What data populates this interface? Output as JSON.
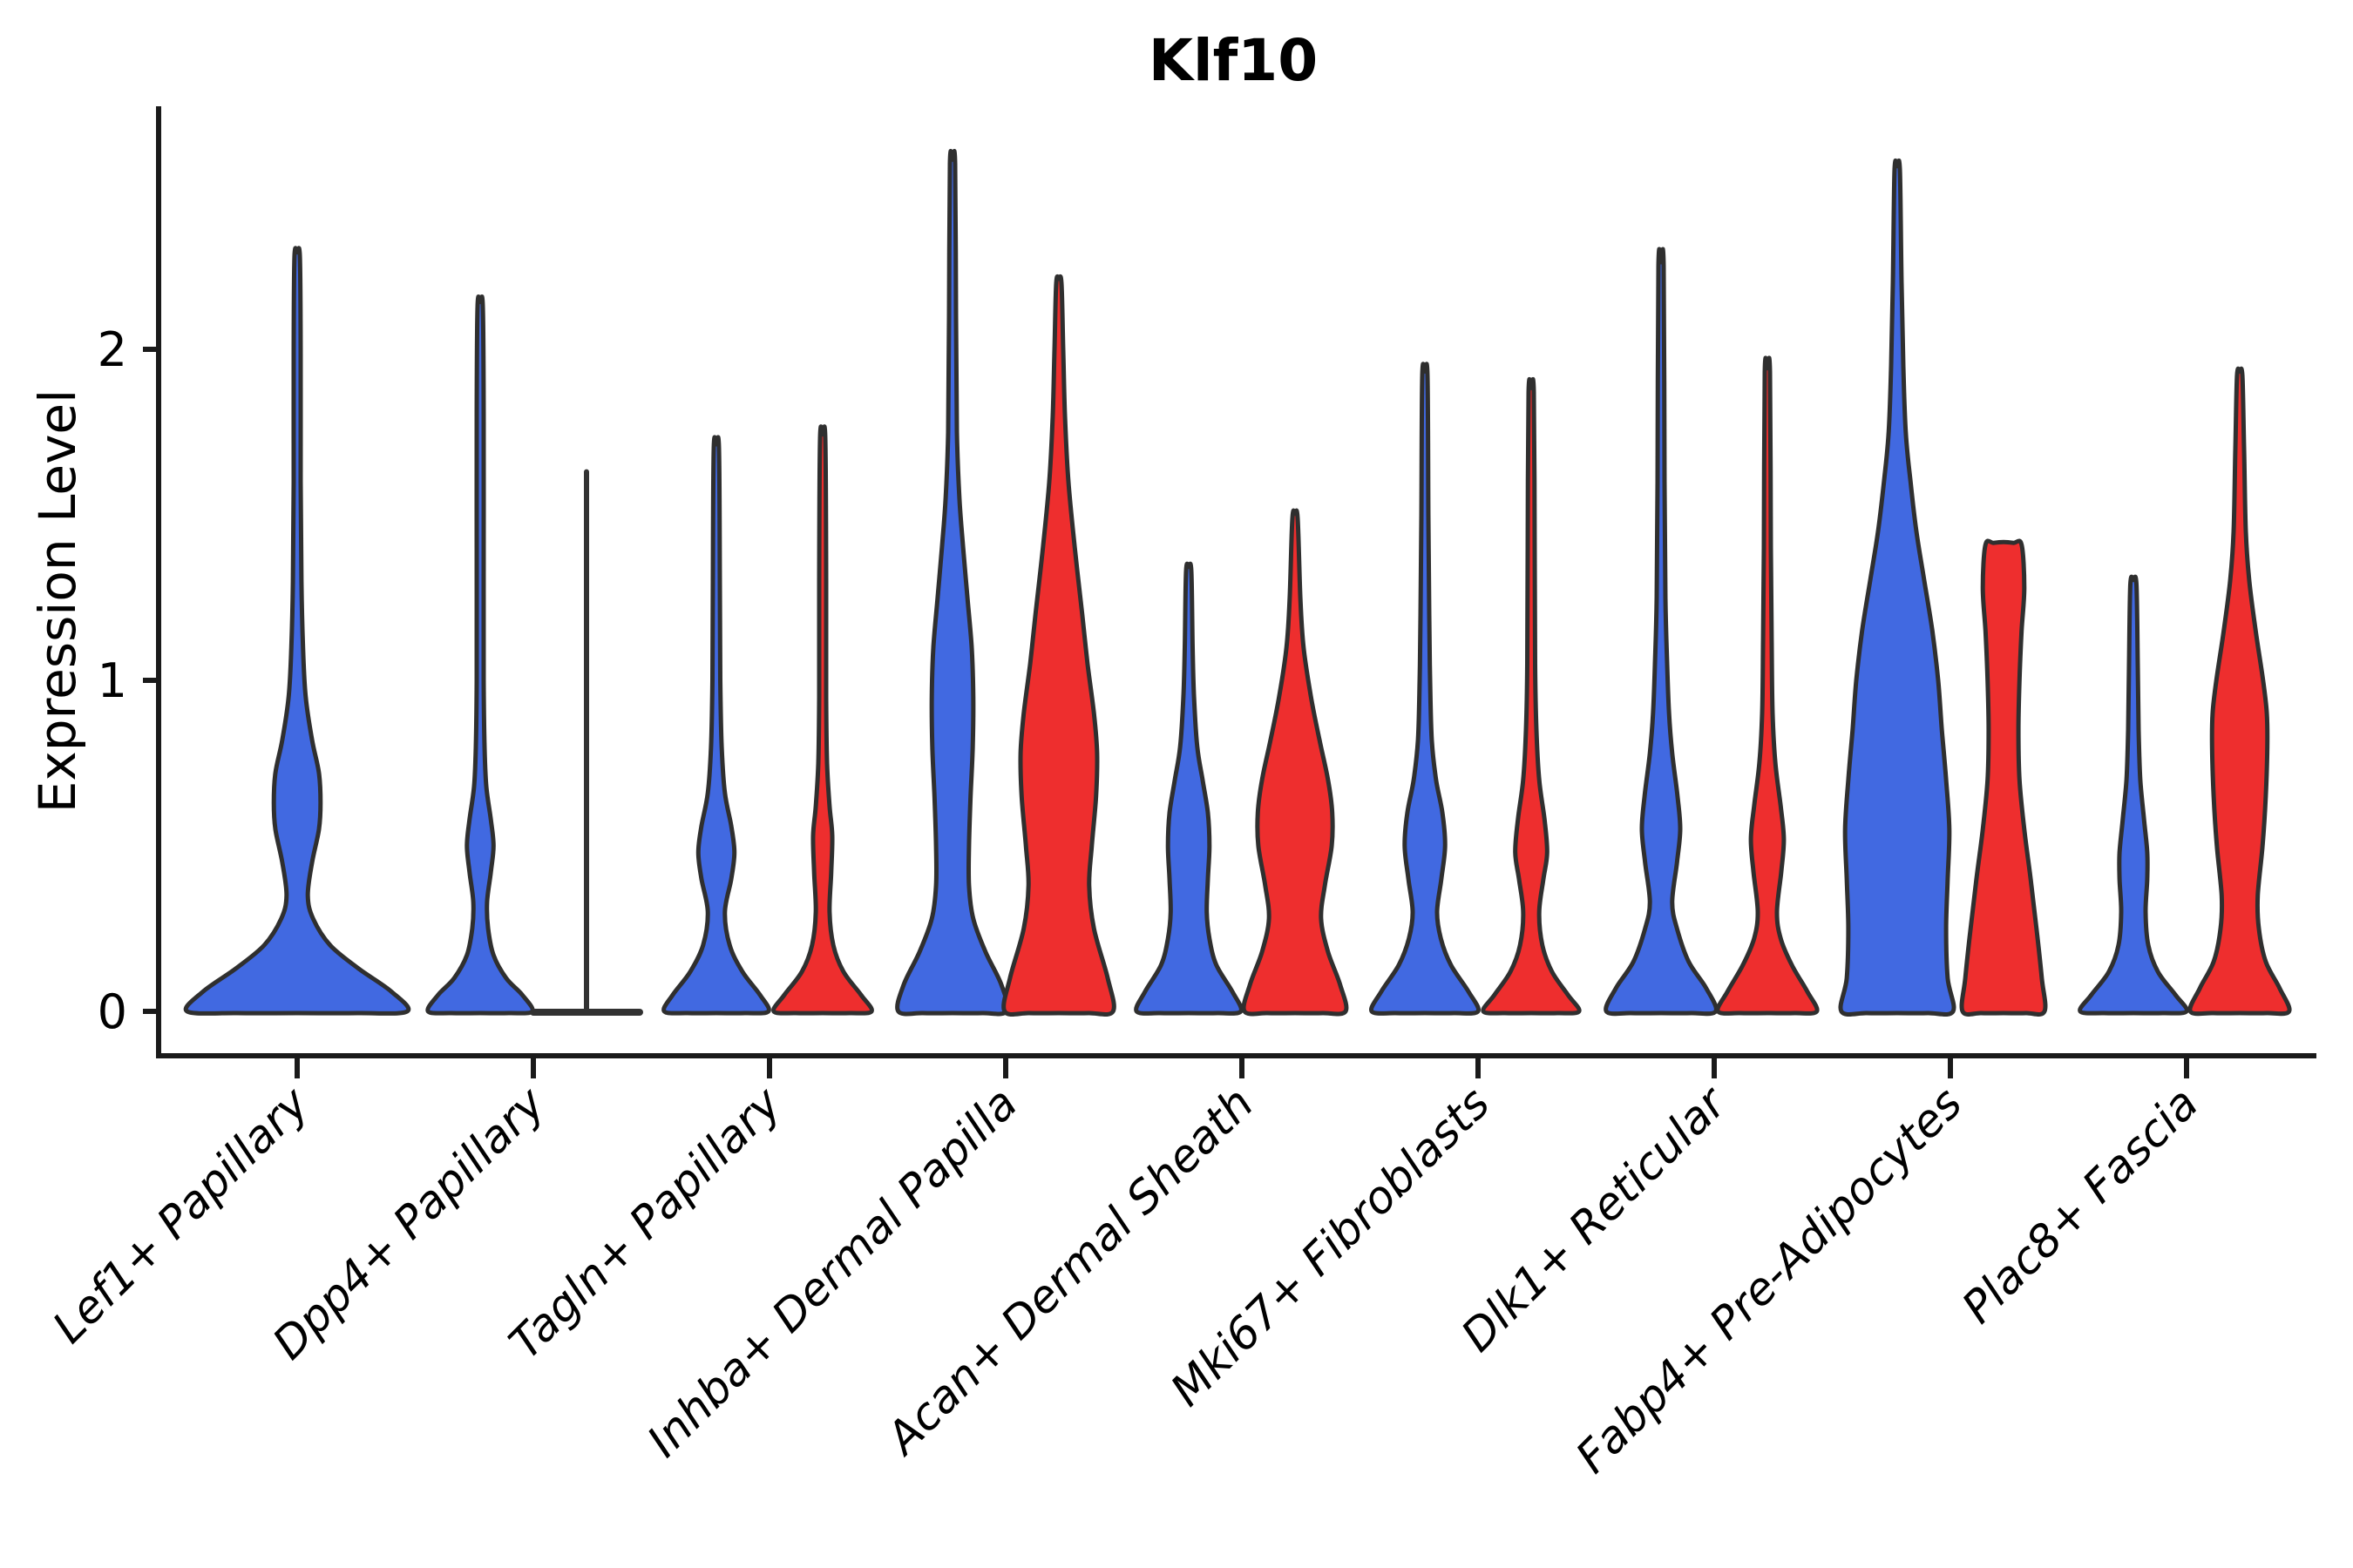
{
  "title": "Klf10",
  "axes": {
    "ylabel": "Expression Level",
    "ytick_labels": [
      "0",
      "1",
      "2"
    ]
  },
  "colors": {
    "blue": "#4169E1",
    "red": "#EE2E2E",
    "outline": "#2f2f2f",
    "axis": "#1a1a1a"
  },
  "chart_data": {
    "type": "violin",
    "title": "Klf10",
    "xlabel": "",
    "ylabel": "Expression Level",
    "ytick_values": [
      0,
      1,
      2
    ],
    "ylim": [
      -0.12,
      2.72
    ],
    "grid": false,
    "legend": "none",
    "categories": [
      "Lef1+ Papillary",
      "Dpp4+ Papillary",
      "Tagln+ Papillary",
      "Inhba+ Dermal Papilla",
      "Acan+ Dermal Sheath",
      "Mki67+ Fibroblasts",
      "Dlk1+ Reticular",
      "Fabp4+ Pre-Adipocytes",
      "Plac8+ Fascia"
    ],
    "series": [
      {
        "name": "blue",
        "color": "#4169E1"
      },
      {
        "name": "red",
        "color": "#EE2E2E"
      }
    ],
    "violins": [
      {
        "category": "Lef1+ Papillary",
        "series": "blue",
        "position": "center",
        "style": "violin",
        "max": 2.28,
        "profile": [
          [
            0,
            2.07
          ],
          [
            0.06,
            1.77
          ],
          [
            0.13,
            1.15
          ],
          [
            0.2,
            0.62
          ],
          [
            0.28,
            0.3
          ],
          [
            0.35,
            0.2
          ],
          [
            0.45,
            0.28
          ],
          [
            0.55,
            0.41
          ],
          [
            0.63,
            0.44
          ],
          [
            0.72,
            0.41
          ],
          [
            0.82,
            0.28
          ],
          [
            0.95,
            0.16
          ],
          [
            1.1,
            0.11
          ],
          [
            1.3,
            0.08
          ],
          [
            1.6,
            0.066
          ],
          [
            2.0,
            0.066
          ],
          [
            2.28,
            0.05
          ]
        ]
      },
      {
        "category": "Dpp4+ Papillary",
        "series": "blue",
        "position": "left",
        "style": "violin",
        "max": 2.13,
        "profile": [
          [
            0,
            0.98
          ],
          [
            0.05,
            0.79
          ],
          [
            0.1,
            0.49
          ],
          [
            0.17,
            0.25
          ],
          [
            0.25,
            0.15
          ],
          [
            0.33,
            0.13
          ],
          [
            0.42,
            0.2
          ],
          [
            0.5,
            0.25
          ],
          [
            0.58,
            0.2
          ],
          [
            0.68,
            0.115
          ],
          [
            0.8,
            0.082
          ],
          [
            1.0,
            0.066
          ],
          [
            1.4,
            0.066
          ],
          [
            1.8,
            0.066
          ],
          [
            2.13,
            0.05
          ]
        ]
      },
      {
        "category": "Dpp4+ Papillary",
        "series": "red",
        "position": "right",
        "style": "collapsed-line",
        "max": 1.63,
        "base_halfwidth": 1.0,
        "profile": []
      },
      {
        "category": "Tagln+ Papillary",
        "series": "blue",
        "position": "left",
        "style": "violin",
        "max": 1.7,
        "profile": [
          [
            0,
            0.98
          ],
          [
            0.05,
            0.82
          ],
          [
            0.12,
            0.49
          ],
          [
            0.2,
            0.25
          ],
          [
            0.3,
            0.16
          ],
          [
            0.4,
            0.28
          ],
          [
            0.48,
            0.34
          ],
          [
            0.56,
            0.28
          ],
          [
            0.66,
            0.16
          ],
          [
            0.8,
            0.1
          ],
          [
            1.0,
            0.074
          ],
          [
            1.3,
            0.066
          ],
          [
            1.7,
            0.05
          ]
        ]
      },
      {
        "category": "Tagln+ Papillary",
        "series": "red",
        "position": "right",
        "style": "violin",
        "max": 1.73,
        "profile": [
          [
            0,
            0.92
          ],
          [
            0.05,
            0.72
          ],
          [
            0.12,
            0.39
          ],
          [
            0.2,
            0.2
          ],
          [
            0.3,
            0.13
          ],
          [
            0.42,
            0.16
          ],
          [
            0.53,
            0.18
          ],
          [
            0.62,
            0.13
          ],
          [
            0.75,
            0.082
          ],
          [
            0.95,
            0.066
          ],
          [
            1.3,
            0.066
          ],
          [
            1.73,
            0.05
          ]
        ]
      },
      {
        "category": "Inhba+ Dermal Papilla",
        "series": "blue",
        "position": "left",
        "style": "violin",
        "max": 2.56,
        "profile": [
          [
            0,
            1.02
          ],
          [
            0.08,
            0.92
          ],
          [
            0.18,
            0.62
          ],
          [
            0.28,
            0.39
          ],
          [
            0.38,
            0.31
          ],
          [
            0.5,
            0.31
          ],
          [
            0.65,
            0.34
          ],
          [
            0.8,
            0.38
          ],
          [
            0.95,
            0.39
          ],
          [
            1.1,
            0.36
          ],
          [
            1.25,
            0.28
          ],
          [
            1.4,
            0.2
          ],
          [
            1.55,
            0.13
          ],
          [
            1.75,
            0.082
          ],
          [
            2.1,
            0.066
          ],
          [
            2.56,
            0.05
          ]
        ]
      },
      {
        "category": "Inhba+ Dermal Papilla",
        "series": "red",
        "position": "right",
        "style": "violin",
        "max": 2.2,
        "profile": [
          [
            0,
            1.02
          ],
          [
            0.1,
            0.92
          ],
          [
            0.25,
            0.66
          ],
          [
            0.38,
            0.57
          ],
          [
            0.5,
            0.62
          ],
          [
            0.65,
            0.7
          ],
          [
            0.78,
            0.72
          ],
          [
            0.9,
            0.66
          ],
          [
            1.05,
            0.54
          ],
          [
            1.2,
            0.44
          ],
          [
            1.4,
            0.3
          ],
          [
            1.6,
            0.18
          ],
          [
            1.8,
            0.115
          ],
          [
            2.0,
            0.082
          ],
          [
            2.2,
            0.05
          ]
        ]
      },
      {
        "category": "Acan+ Dermal Sheath",
        "series": "blue",
        "position": "left",
        "style": "violin",
        "max": 1.33,
        "profile": [
          [
            0,
            0.98
          ],
          [
            0.06,
            0.82
          ],
          [
            0.14,
            0.52
          ],
          [
            0.22,
            0.39
          ],
          [
            0.3,
            0.34
          ],
          [
            0.4,
            0.36
          ],
          [
            0.5,
            0.39
          ],
          [
            0.6,
            0.36
          ],
          [
            0.7,
            0.26
          ],
          [
            0.8,
            0.16
          ],
          [
            0.95,
            0.1
          ],
          [
            1.1,
            0.074
          ],
          [
            1.33,
            0.05
          ]
        ]
      },
      {
        "category": "Acan+ Dermal Sheath",
        "series": "red",
        "position": "right",
        "style": "violin",
        "max": 1.49,
        "profile": [
          [
            0,
            0.95
          ],
          [
            0.08,
            0.85
          ],
          [
            0.18,
            0.62
          ],
          [
            0.28,
            0.49
          ],
          [
            0.38,
            0.56
          ],
          [
            0.5,
            0.69
          ],
          [
            0.6,
            0.7
          ],
          [
            0.7,
            0.62
          ],
          [
            0.82,
            0.46
          ],
          [
            0.95,
            0.3
          ],
          [
            1.1,
            0.16
          ],
          [
            1.25,
            0.1
          ],
          [
            1.49,
            0.05
          ]
        ]
      },
      {
        "category": "Mki67+ Fibroblasts",
        "series": "blue",
        "position": "left",
        "style": "violin",
        "max": 1.92,
        "profile": [
          [
            0,
            1.0
          ],
          [
            0.06,
            0.82
          ],
          [
            0.14,
            0.49
          ],
          [
            0.22,
            0.3
          ],
          [
            0.3,
            0.23
          ],
          [
            0.4,
            0.31
          ],
          [
            0.5,
            0.38
          ],
          [
            0.6,
            0.33
          ],
          [
            0.7,
            0.21
          ],
          [
            0.82,
            0.13
          ],
          [
            1.0,
            0.098
          ],
          [
            1.2,
            0.082
          ],
          [
            1.5,
            0.066
          ],
          [
            1.92,
            0.05
          ]
        ]
      },
      {
        "category": "Mki67+ Fibroblasts",
        "series": "red",
        "position": "right",
        "style": "violin",
        "max": 1.87,
        "profile": [
          [
            0,
            0.9
          ],
          [
            0.05,
            0.69
          ],
          [
            0.12,
            0.39
          ],
          [
            0.2,
            0.21
          ],
          [
            0.3,
            0.15
          ],
          [
            0.4,
            0.23
          ],
          [
            0.48,
            0.3
          ],
          [
            0.58,
            0.25
          ],
          [
            0.7,
            0.15
          ],
          [
            0.85,
            0.098
          ],
          [
            1.05,
            0.074
          ],
          [
            1.4,
            0.066
          ],
          [
            1.87,
            0.05
          ]
        ]
      },
      {
        "category": "Dlk1+ Reticular",
        "series": "blue",
        "position": "left",
        "style": "violin",
        "max": 2.25,
        "profile": [
          [
            0,
            1.03
          ],
          [
            0.07,
            0.85
          ],
          [
            0.15,
            0.52
          ],
          [
            0.25,
            0.3
          ],
          [
            0.33,
            0.21
          ],
          [
            0.45,
            0.3
          ],
          [
            0.55,
            0.36
          ],
          [
            0.65,
            0.31
          ],
          [
            0.78,
            0.21
          ],
          [
            0.9,
            0.15
          ],
          [
            1.05,
            0.115
          ],
          [
            1.25,
            0.082
          ],
          [
            1.6,
            0.066
          ],
          [
            2.25,
            0.05
          ]
        ]
      },
      {
        "category": "Dlk1+ Reticular",
        "series": "red",
        "position": "right",
        "style": "violin",
        "max": 1.93,
        "profile": [
          [
            0,
            0.93
          ],
          [
            0.06,
            0.75
          ],
          [
            0.14,
            0.46
          ],
          [
            0.22,
            0.25
          ],
          [
            0.3,
            0.18
          ],
          [
            0.42,
            0.26
          ],
          [
            0.52,
            0.31
          ],
          [
            0.62,
            0.25
          ],
          [
            0.75,
            0.15
          ],
          [
            0.9,
            0.098
          ],
          [
            1.1,
            0.082
          ],
          [
            1.4,
            0.066
          ],
          [
            1.93,
            0.05
          ]
        ]
      },
      {
        "category": "Fabp4+ Pre-Adipocytes",
        "series": "blue",
        "position": "left",
        "style": "violin",
        "max": 2.54,
        "profile": [
          [
            0,
            1.05
          ],
          [
            0.1,
            0.95
          ],
          [
            0.25,
            0.92
          ],
          [
            0.4,
            0.95
          ],
          [
            0.55,
            0.98
          ],
          [
            0.7,
            0.92
          ],
          [
            0.85,
            0.84
          ],
          [
            1.0,
            0.77
          ],
          [
            1.15,
            0.66
          ],
          [
            1.3,
            0.51
          ],
          [
            1.45,
            0.36
          ],
          [
            1.6,
            0.25
          ],
          [
            1.75,
            0.16
          ],
          [
            1.95,
            0.115
          ],
          [
            2.2,
            0.082
          ],
          [
            2.54,
            0.05
          ]
        ]
      },
      {
        "category": "Fabp4+ Pre-Adipocytes",
        "series": "red",
        "position": "right",
        "style": "flat-top",
        "max": 1.41,
        "profile": [
          [
            0,
            0.77
          ],
          [
            0.1,
            0.72
          ],
          [
            0.25,
            0.62
          ],
          [
            0.4,
            0.51
          ],
          [
            0.55,
            0.39
          ],
          [
            0.7,
            0.3
          ],
          [
            0.85,
            0.28
          ],
          [
            1.0,
            0.3
          ],
          [
            1.15,
            0.34
          ],
          [
            1.28,
            0.39
          ],
          [
            1.41,
            0.34
          ]
        ]
      },
      {
        "category": "Plac8+ Fascia",
        "series": "blue",
        "position": "left",
        "style": "violin",
        "max": 1.29,
        "profile": [
          [
            0,
            1.0
          ],
          [
            0.05,
            0.79
          ],
          [
            0.12,
            0.46
          ],
          [
            0.2,
            0.28
          ],
          [
            0.3,
            0.23
          ],
          [
            0.4,
            0.26
          ],
          [
            0.48,
            0.26
          ],
          [
            0.58,
            0.2
          ],
          [
            0.7,
            0.13
          ],
          [
            0.85,
            0.098
          ],
          [
            1.05,
            0.082
          ],
          [
            1.29,
            0.057
          ]
        ]
      },
      {
        "category": "Plac8+ Fascia",
        "series": "red",
        "position": "right",
        "style": "violin",
        "max": 1.92,
        "profile": [
          [
            0,
            0.93
          ],
          [
            0.07,
            0.75
          ],
          [
            0.15,
            0.49
          ],
          [
            0.25,
            0.36
          ],
          [
            0.35,
            0.34
          ],
          [
            0.5,
            0.43
          ],
          [
            0.65,
            0.49
          ],
          [
            0.8,
            0.52
          ],
          [
            0.9,
            0.51
          ],
          [
            1.0,
            0.44
          ],
          [
            1.15,
            0.3
          ],
          [
            1.3,
            0.18
          ],
          [
            1.45,
            0.115
          ],
          [
            1.7,
            0.082
          ],
          [
            1.92,
            0.05
          ]
        ]
      }
    ]
  }
}
